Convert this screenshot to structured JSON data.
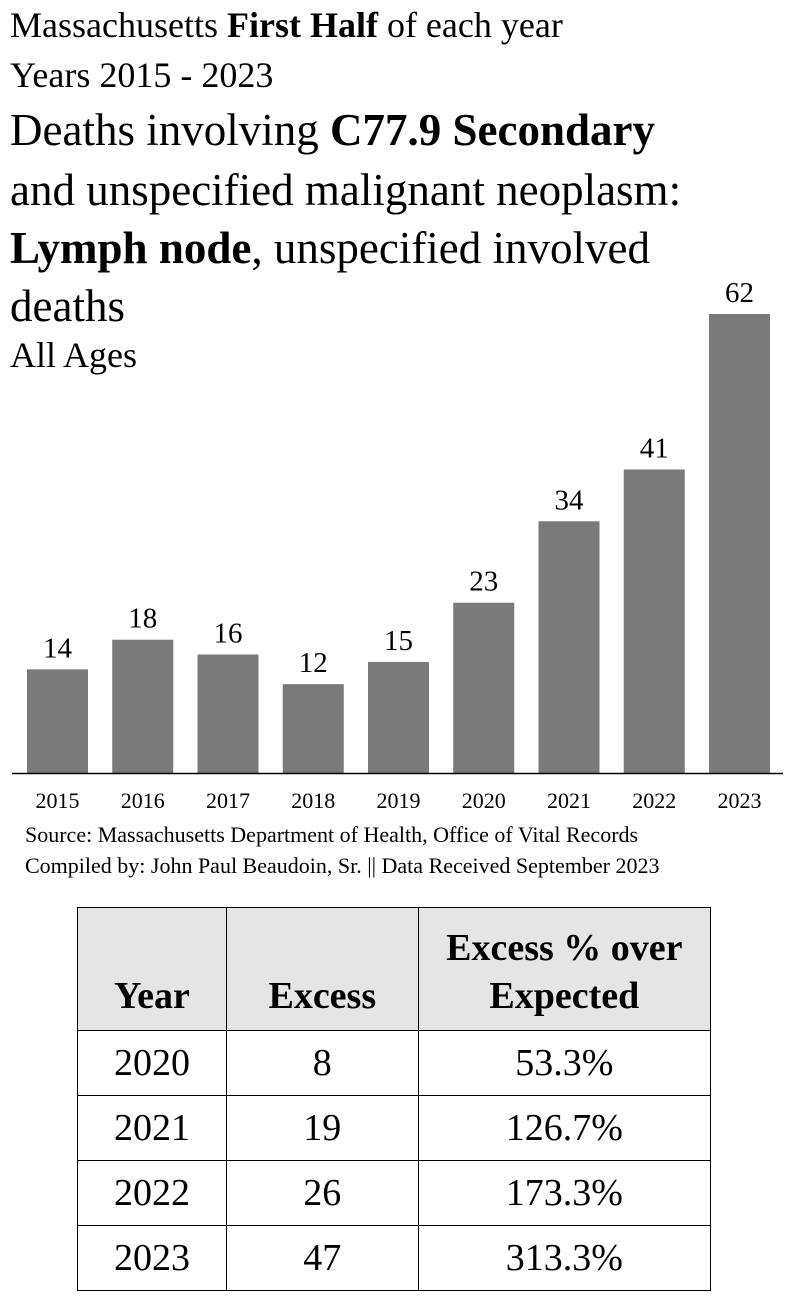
{
  "heading": {
    "line1_pre": "Massachusetts ",
    "line1_bold": "First Half",
    "line1_post": " of each year",
    "line2": "Years 2015 - 2023",
    "line3_pre": "Deaths involving ",
    "line3_bold": "C77.9 Secondary",
    "line4": "and unspecified malignant neoplasm:",
    "line5_bold": "Lymph node",
    "line5_post": ", unspecified involved",
    "line6": "deaths",
    "line7": "All Ages"
  },
  "chart_data": {
    "type": "bar",
    "categories": [
      "2015",
      "2016",
      "2017",
      "2018",
      "2019",
      "2020",
      "2021",
      "2022",
      "2023"
    ],
    "values": [
      14,
      18,
      16,
      12,
      15,
      23,
      34,
      41,
      62
    ],
    "ylim": [
      0,
      62
    ],
    "grid": false,
    "bar_color": "#7a7a7a"
  },
  "source": "Source:  Massachusetts Department of Health, Office of Vital Records",
  "compiled": "Compiled by:  John Paul Beaudoin, Sr. || Data Received September 2023",
  "table": {
    "headers": [
      "Year",
      "Excess",
      "Excess % over Expected"
    ],
    "rows": [
      [
        "2020",
        "8",
        "53.3%"
      ],
      [
        "2021",
        "19",
        "126.7%"
      ],
      [
        "2022",
        "26",
        "173.3%"
      ],
      [
        "2023",
        "47",
        "313.3%"
      ]
    ]
  }
}
